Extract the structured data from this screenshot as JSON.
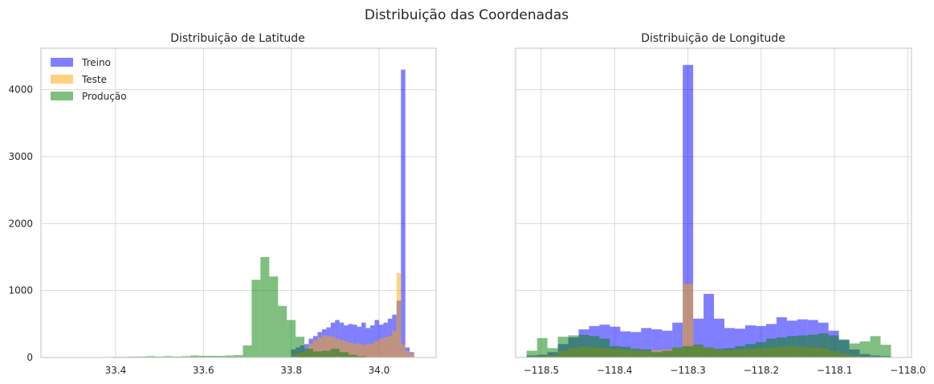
{
  "figure": {
    "title": "Distribuição das Coordenadas"
  },
  "colors": {
    "treino": "#0000FF",
    "teste": "#FFA500",
    "producao": "#008000",
    "grid": "#d9d9d9",
    "axis": "#cccccc"
  },
  "legend": {
    "placement": "upper-left",
    "entries": [
      "Treino",
      "Teste",
      "Produção"
    ]
  },
  "chart_data": [
    {
      "type": "histogram",
      "title": "Distribuição de Latitude",
      "xlabel": "",
      "ylabel": "",
      "xlim": [
        33.23,
        34.13
      ],
      "ylim": [
        0,
        4620
      ],
      "grid": true,
      "xticks": [
        33.4,
        33.6,
        33.8,
        34.0
      ],
      "xtick_labels": [
        "33.4",
        "33.6",
        "33.8",
        "34.0"
      ],
      "yticks": [
        0,
        1000,
        2000,
        3000,
        4000
      ],
      "ytick_labels": [
        "0",
        "1000",
        "2000",
        "3000",
        "4000"
      ],
      "series": [
        {
          "name": "Treino",
          "alpha": 0.5,
          "x0": 33.8,
          "bin_width": 0.01,
          "values": [
            120,
            150,
            180,
            200,
            280,
            320,
            380,
            420,
            450,
            520,
            560,
            520,
            480,
            500,
            490,
            460,
            520,
            440,
            480,
            560,
            490,
            520,
            580,
            640,
            850,
            4300,
            150,
            80
          ]
        },
        {
          "name": "Teste",
          "alpha": 0.5,
          "x0": 33.8,
          "bin_width": 0.01,
          "values": [
            40,
            60,
            80,
            120,
            200,
            260,
            300,
            330,
            320,
            310,
            280,
            260,
            240,
            220,
            200,
            210,
            190,
            200,
            210,
            250,
            280,
            300,
            320,
            400,
            1260,
            200,
            100,
            60
          ]
        },
        {
          "name": "Produção",
          "alpha": 0.5,
          "x0": 33.25,
          "bin_width": 0.02,
          "values": [
            5,
            5,
            5,
            5,
            5,
            5,
            5,
            10,
            10,
            15,
            15,
            20,
            15,
            20,
            15,
            20,
            30,
            25,
            25,
            25,
            30,
            35,
            180,
            1160,
            1500,
            1210,
            770,
            560,
            310,
            130,
            90,
            100,
            130,
            80,
            40,
            20,
            5
          ]
        }
      ]
    },
    {
      "type": "histogram",
      "title": "Distribuição de Longitude",
      "xlabel": "",
      "ylabel": "",
      "xlim": [
        -118.535,
        -117.995
      ],
      "ylim": [
        0,
        4620
      ],
      "grid": true,
      "xticks": [
        -118.5,
        -118.4,
        -118.3,
        -118.2,
        -118.1,
        -118.0
      ],
      "xtick_labels": [
        "−118.5",
        "−118.4",
        "−118.3",
        "−118.2",
        "−118.1",
        "−118.0"
      ],
      "yticks": [
        0,
        1000,
        2000,
        3000,
        4000
      ],
      "series": [
        {
          "name": "Treino",
          "alpha": 0.5,
          "x0": -118.52,
          "bin_width": 0.0142,
          "values": [
            30,
            40,
            80,
            200,
            300,
            420,
            470,
            490,
            460,
            390,
            380,
            440,
            420,
            400,
            520,
            4370,
            580,
            950,
            580,
            440,
            430,
            480,
            470,
            500,
            600,
            550,
            570,
            560,
            520,
            400,
            260,
            120,
            50,
            30,
            20
          ]
        },
        {
          "name": "Teste",
          "alpha": 0.5,
          "x0": -118.52,
          "bin_width": 0.0142,
          "values": [
            10,
            20,
            40,
            100,
            140,
            160,
            150,
            140,
            130,
            120,
            110,
            100,
            110,
            120,
            150,
            1100,
            180,
            140,
            120,
            110,
            120,
            130,
            140,
            150,
            160,
            170,
            160,
            150,
            140,
            100,
            60,
            30,
            15,
            10,
            5
          ]
        },
        {
          "name": "Produção",
          "alpha": 0.5,
          "x0": -118.52,
          "bin_width": 0.0142,
          "values": [
            100,
            290,
            140,
            310,
            330,
            340,
            320,
            280,
            170,
            160,
            130,
            120,
            80,
            100,
            150,
            170,
            190,
            150,
            130,
            140,
            170,
            200,
            230,
            280,
            300,
            320,
            330,
            340,
            360,
            330,
            270,
            210,
            240,
            320,
            190
          ]
        }
      ]
    }
  ]
}
